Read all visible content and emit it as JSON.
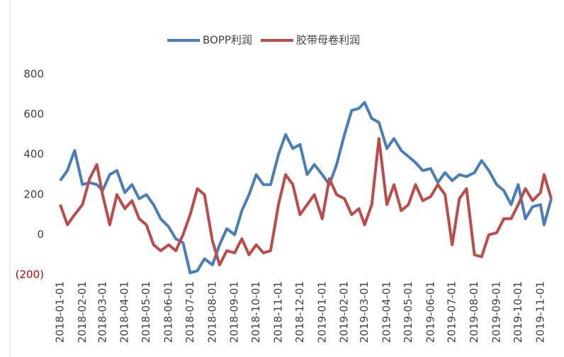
{
  "chart_data": {
    "type": "line",
    "legend": "top",
    "negative_tick_color": "#c00000",
    "x": [
      "2018-01-01",
      "2018-01-11",
      "2018-01-21",
      "2018-02-01",
      "2018-02-11",
      "2018-02-21",
      "2018-03-01",
      "2018-03-11",
      "2018-03-21",
      "2018-04-01",
      "2018-04-11",
      "2018-04-21",
      "2018-05-01",
      "2018-05-11",
      "2018-05-21",
      "2018-06-01",
      "2018-06-11",
      "2018-06-21",
      "2018-07-01",
      "2018-07-11",
      "2018-07-21",
      "2018-08-01",
      "2018-08-11",
      "2018-08-21",
      "2018-09-01",
      "2018-09-11",
      "2018-09-21",
      "2018-10-01",
      "2018-10-11",
      "2018-10-21",
      "2018-11-01",
      "2018-11-11",
      "2018-11-21",
      "2018-12-01",
      "2018-12-11",
      "2018-12-21",
      "2019-01-01",
      "2019-01-11",
      "2019-01-21",
      "2019-02-01",
      "2019-02-11",
      "2019-02-21",
      "2019-03-01",
      "2019-03-11",
      "2019-03-21",
      "2019-04-01",
      "2019-04-11",
      "2019-04-21",
      "2019-05-01",
      "2019-05-11",
      "2019-05-21",
      "2019-06-01",
      "2019-06-11",
      "2019-06-21",
      "2019-07-01",
      "2019-07-11",
      "2019-07-21",
      "2019-08-01",
      "2019-08-11",
      "2019-08-21",
      "2019-09-01",
      "2019-09-11",
      "2019-09-21",
      "2019-10-01",
      "2019-10-11",
      "2019-10-21",
      "2019-11-01",
      "2019-11-06",
      "2019-11-16"
    ],
    "series": [
      {
        "name": "BOPP利润",
        "color": "#4a7ebb",
        "values": [
          270,
          320,
          420,
          250,
          260,
          250,
          220,
          300,
          320,
          210,
          250,
          180,
          200,
          150,
          80,
          40,
          -20,
          -40,
          -190,
          -180,
          -120,
          -150,
          -50,
          30,
          0,
          120,
          200,
          300,
          250,
          250,
          400,
          500,
          430,
          450,
          300,
          350,
          300,
          250,
          350,
          500,
          620,
          630,
          660,
          580,
          560,
          430,
          480,
          420,
          390,
          360,
          320,
          330,
          260,
          310,
          270,
          300,
          290,
          310,
          370,
          320,
          250,
          220,
          150,
          250,
          80,
          140,
          150,
          50,
          180
        ]
      },
      {
        "name": "胶带母卷利润",
        "color": "#be4b48",
        "values": [
          150,
          50,
          100,
          150,
          280,
          350,
          200,
          50,
          200,
          130,
          170,
          80,
          50,
          -50,
          -80,
          -50,
          -80,
          0,
          100,
          230,
          200,
          -30,
          -150,
          -80,
          -90,
          -20,
          -100,
          -50,
          -90,
          -80,
          150,
          300,
          250,
          100,
          150,
          200,
          80,
          280,
          200,
          180,
          100,
          130,
          50,
          150,
          480,
          150,
          250,
          120,
          150,
          250,
          170,
          190,
          250,
          200,
          -50,
          180,
          230,
          -100,
          -110,
          0,
          10,
          80,
          80,
          150,
          230,
          170,
          210,
          300,
          180
        ]
      }
    ],
    "xlim": [
      "2018-01-01",
      "2019-11-16"
    ],
    "xticks": [
      "2018-01-01",
      "2018-02-01",
      "2018-03-01",
      "2018-04-01",
      "2018-05-01",
      "2018-06-01",
      "2018-07-01",
      "2018-08-01",
      "2018-09-01",
      "2018-10-01",
      "2018-11-01",
      "2018-12-01",
      "2019-01-01",
      "2019-02-01",
      "2019-03-01",
      "2019-04-01",
      "2019-05-01",
      "2019-06-01",
      "2019-07-01",
      "2019-08-01",
      "2019-09-01",
      "2019-10-01",
      "2019-11-01"
    ],
    "ylim": [
      -200,
      800
    ],
    "yticks": [
      {
        "value": -200,
        "label": "(200)"
      },
      0,
      200,
      400,
      600,
      800
    ]
  }
}
